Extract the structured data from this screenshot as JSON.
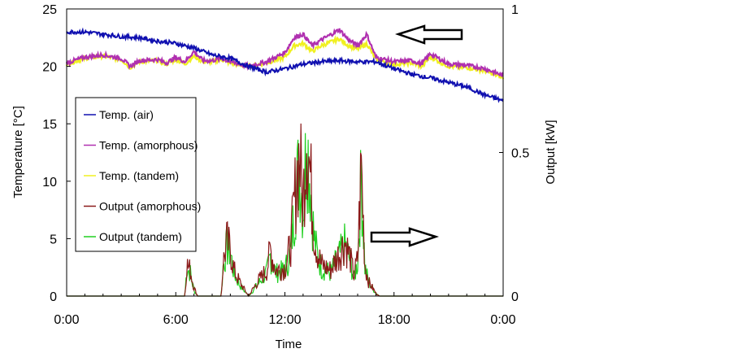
{
  "chart_data": {
    "type": "line",
    "xlabel": "Time",
    "ylabel": "Temperature [°C]",
    "y2label": "Output [kW]",
    "xlim": [
      0,
      24
    ],
    "ylim": [
      0,
      25
    ],
    "y2lim": [
      0,
      1
    ],
    "x_ticks": [
      {
        "value": 0,
        "label": "0:00"
      },
      {
        "value": 6,
        "label": "6:00"
      },
      {
        "value": 12,
        "label": "12:00"
      },
      {
        "value": 18,
        "label": "18:00"
      },
      {
        "value": 24,
        "label": "0:00"
      }
    ],
    "y_ticks": [
      "0",
      "5",
      "10",
      "15",
      "20",
      "25"
    ],
    "y2_ticks": [
      {
        "value": 0,
        "label": "0"
      },
      {
        "value": 0.5,
        "label": "0.5"
      },
      {
        "value": 1,
        "label": "1"
      }
    ],
    "grid": false,
    "legend_position": "left",
    "annotations": [
      {
        "type": "arrow-left",
        "meaning": "temperature series read on left axis"
      },
      {
        "type": "arrow-right",
        "meaning": "output series read on right axis"
      }
    ],
    "series": [
      {
        "name": "Temp. (air)",
        "axis": "left",
        "color": "#1010b0",
        "x": [
          0,
          1,
          2,
          3,
          4,
          5,
          6,
          7,
          8,
          9,
          10,
          11,
          12,
          13,
          14,
          15,
          16,
          17,
          18,
          19,
          20,
          21,
          22,
          23,
          24
        ],
        "y": [
          23.0,
          23.0,
          22.8,
          22.6,
          22.5,
          22.2,
          22.0,
          21.6,
          21.0,
          20.7,
          20.0,
          19.5,
          19.8,
          20.2,
          20.4,
          20.5,
          20.4,
          20.4,
          19.8,
          19.3,
          19.0,
          18.6,
          18.2,
          17.5,
          17.0
        ]
      },
      {
        "name": "Temp. (amorphous)",
        "axis": "left",
        "color": "#b030b0",
        "x": [
          0,
          1,
          2,
          3,
          3.5,
          4,
          5,
          5.5,
          6,
          6.5,
          7,
          7.5,
          8,
          8.5,
          9,
          10,
          11,
          12,
          12.5,
          13,
          13.5,
          14,
          15,
          15.5,
          16,
          16.5,
          17,
          18,
          19,
          19.5,
          20,
          21,
          22,
          23,
          24
        ],
        "y": [
          20.3,
          20.8,
          21.0,
          20.7,
          20.0,
          20.5,
          20.6,
          20.3,
          20.8,
          20.4,
          21.3,
          20.5,
          20.5,
          20.7,
          20.4,
          20.0,
          20.4,
          21.2,
          22.5,
          22.8,
          21.8,
          22.3,
          23.2,
          22.3,
          21.8,
          22.8,
          20.8,
          20.4,
          20.5,
          20.2,
          21.1,
          20.2,
          20.1,
          19.8,
          19.2
        ]
      },
      {
        "name": "Temp. (tandem)",
        "axis": "left",
        "color": "#f0f020",
        "x": [
          0,
          1,
          2,
          3,
          3.5,
          4,
          5,
          5.5,
          6,
          6.5,
          7,
          7.5,
          8,
          8.5,
          9,
          10,
          11,
          12,
          12.5,
          13,
          13.5,
          14,
          15,
          15.5,
          16,
          16.5,
          17,
          18,
          19,
          19.5,
          20,
          21,
          22,
          23,
          24
        ],
        "y": [
          20.2,
          20.7,
          20.9,
          20.6,
          19.9,
          20.4,
          20.5,
          20.2,
          20.6,
          20.2,
          20.9,
          20.4,
          20.4,
          20.6,
          20.3,
          20.0,
          20.3,
          20.8,
          21.8,
          22.0,
          21.3,
          21.8,
          22.4,
          21.8,
          21.5,
          22.0,
          20.6,
          20.2,
          20.3,
          20.0,
          20.8,
          20.0,
          19.9,
          19.6,
          19.0
        ]
      },
      {
        "name": "Output (amorphous)",
        "axis": "right",
        "color": "#8b1a1a",
        "x": [
          0,
          6.5,
          6.6,
          6.8,
          7,
          7.2,
          8.5,
          8.6,
          8.8,
          9,
          9.2,
          9.5,
          10,
          10.5,
          11,
          11.2,
          11.5,
          12,
          12.3,
          12.6,
          12.8,
          13,
          13.2,
          13.4,
          13.6,
          13.8,
          14,
          14.5,
          15,
          15.3,
          15.6,
          15.8,
          16,
          16.2,
          16.4,
          16.6,
          17,
          17.2,
          24
        ],
        "y": [
          0,
          0,
          0.11,
          0.09,
          0.03,
          0,
          0,
          0.11,
          0.19,
          0.16,
          0.09,
          0.05,
          0,
          0.05,
          0.09,
          0.16,
          0.09,
          0.1,
          0.17,
          0.38,
          0.5,
          0.32,
          0.59,
          0.42,
          0.22,
          0.15,
          0.11,
          0.09,
          0.15,
          0.19,
          0.13,
          0.07,
          0.13,
          0.46,
          0.11,
          0.05,
          0.01,
          0,
          0
        ]
      },
      {
        "name": "Output (tandem)",
        "axis": "right",
        "color": "#20d020",
        "x": [
          0,
          6.5,
          6.6,
          6.8,
          7,
          7.2,
          8.5,
          8.6,
          8.8,
          9,
          9.2,
          9.5,
          10,
          10.5,
          11,
          11.2,
          11.5,
          12,
          12.3,
          12.6,
          12.8,
          13,
          13.2,
          13.4,
          13.6,
          13.8,
          14,
          14.5,
          15,
          15.3,
          15.6,
          15.8,
          16,
          16.2,
          16.4,
          16.6,
          17,
          17.2,
          24
        ],
        "y": [
          0,
          0,
          0.1,
          0.08,
          0.02,
          0,
          0,
          0.1,
          0.17,
          0.15,
          0.08,
          0.04,
          0,
          0.04,
          0.08,
          0.14,
          0.08,
          0.09,
          0.15,
          0.35,
          0.46,
          0.3,
          0.55,
          0.4,
          0.2,
          0.14,
          0.1,
          0.08,
          0.14,
          0.18,
          0.12,
          0.06,
          0.12,
          0.42,
          0.1,
          0.05,
          0.01,
          0,
          0
        ]
      }
    ]
  }
}
